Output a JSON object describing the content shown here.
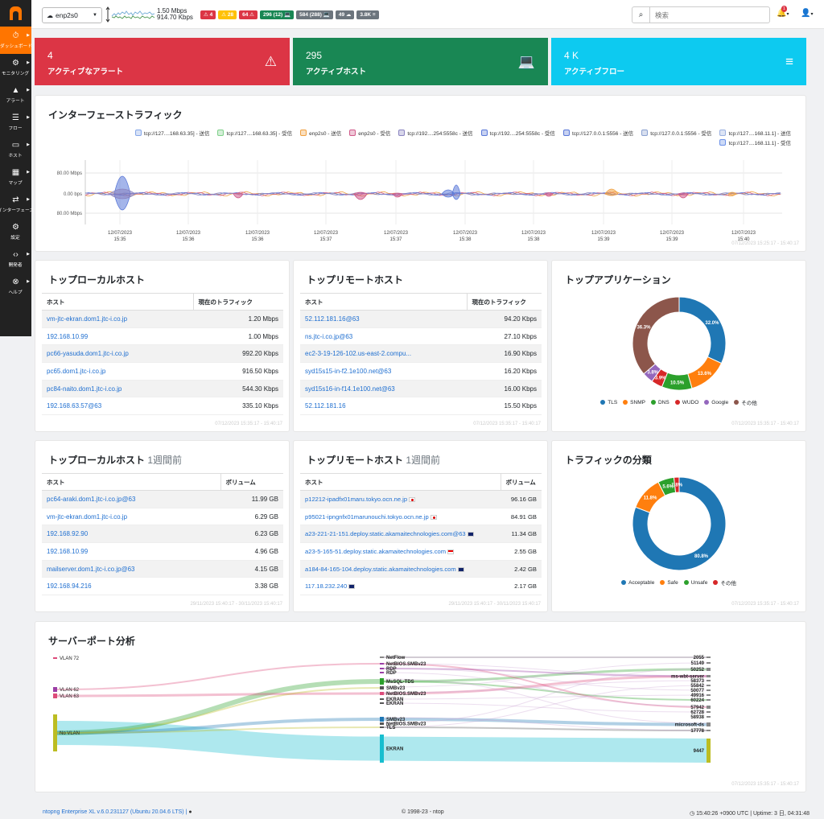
{
  "sidebar": {
    "items": [
      {
        "label": "ダッシュボード",
        "icon": "dashboard-icon"
      },
      {
        "label": "モニタリング",
        "icon": "monitoring-icon"
      },
      {
        "label": "アラート",
        "icon": "alert-icon"
      },
      {
        "label": "フロー",
        "icon": "flows-icon"
      },
      {
        "label": "ホスト",
        "icon": "hosts-icon"
      },
      {
        "label": "マップ",
        "icon": "map-icon"
      },
      {
        "label": "インターフェース",
        "icon": "interface-icon"
      },
      {
        "label": "設定",
        "icon": "settings-icon"
      },
      {
        "label": "開発者",
        "icon": "developer-icon"
      },
      {
        "label": "ヘルプ",
        "icon": "help-icon"
      }
    ]
  },
  "topbar": {
    "interface": "enp2s0",
    "rate_up": "1.50 Mbps",
    "rate_down": "914.70 Kbps",
    "badges": [
      {
        "text": "⚠ 4",
        "color": "#dc3545"
      },
      {
        "text": "⚠ 28",
        "color": "#ffc107"
      },
      {
        "text": "64 ⚠",
        "color": "#dc3545"
      },
      {
        "text": "296 (12) 💻",
        "color": "#198754"
      },
      {
        "text": "584 (288) 💻",
        "color": "#6c757d"
      },
      {
        "text": "49 ☁",
        "color": "#6c757d"
      },
      {
        "text": "3.8K ≡",
        "color": "#6c757d"
      }
    ],
    "search_placeholder": "検索",
    "notification_count": "1"
  },
  "tiles": [
    {
      "value": "4",
      "label": "アクティブなアラート",
      "color": "#dc3545"
    },
    {
      "value": "295",
      "label": "アクティブホスト",
      "color": "#198754"
    },
    {
      "value": "4 K",
      "label": "アクティブフロー",
      "color": "#0dcaf0"
    }
  ],
  "traffic": {
    "title": "インターフェーストラフィック",
    "legend": [
      {
        "name": "tcp://127....168.63.35] - 送信",
        "color": "#86a7e8"
      },
      {
        "name": "tcp://127....168.63.35] - 受信",
        "color": "#7fd08a"
      },
      {
        "name": "enp2s0 - 送信",
        "color": "#f0a040"
      },
      {
        "name": "enp2s0 - 受信",
        "color": "#d05a8a"
      },
      {
        "name": "tcp://192....254:5558c - 送信",
        "color": "#8a84c0"
      },
      {
        "name": "tcp://192....254:5558c - 受信",
        "color": "#5a78d8"
      },
      {
        "name": "tcp://127.0.0.1:5556 - 送信",
        "color": "#5a78d8"
      },
      {
        "name": "tcp://127.0.0.1:5556 - 受信",
        "color": "#8aa0d0"
      },
      {
        "name": "tcp://127....168.11.1] - 送信",
        "color": "#9ab0e0"
      },
      {
        "name": "tcp://127....168.11.1] - 受信",
        "color": "#6a90e8"
      }
    ],
    "y_ticks": [
      "80.00 Mbps",
      "0.00 bps",
      "80.00 Mbps"
    ],
    "x_ticks": [
      {
        "date": "12/07/2023",
        "time": "15:35"
      },
      {
        "date": "12/07/2023",
        "time": "15:36"
      },
      {
        "date": "12/07/2023",
        "time": "15:36"
      },
      {
        "date": "12/07/2023",
        "time": "15:37"
      },
      {
        "date": "12/07/2023",
        "time": "15:37"
      },
      {
        "date": "12/07/2023",
        "time": "15:38"
      },
      {
        "date": "12/07/2023",
        "time": "15:38"
      },
      {
        "date": "12/07/2023",
        "time": "15:39"
      },
      {
        "date": "12/07/2023",
        "time": "15:39"
      },
      {
        "date": "12/07/2023",
        "time": "15:40"
      }
    ],
    "stamp": "07/12/2023 15:25:17 - 15:40:17"
  },
  "local_hosts": {
    "title": "トップローカルホスト",
    "headers": [
      "ホスト",
      "現在のトラフィック"
    ],
    "rows": [
      [
        "vm-jtc-ekran.dom1.jtc-i.co.jp",
        "1.20 Mbps"
      ],
      [
        "192.168.10.99",
        "1.00 Mbps"
      ],
      [
        "pc66-yasuda.dom1.jtc-i.co.jp",
        "992.20 Kbps"
      ],
      [
        "pc65.dom1.jtc-i.co.jp",
        "916.50 Kbps"
      ],
      [
        "pc84-naito.dom1.jtc-i.co.jp",
        "544.30 Kbps"
      ],
      [
        "192.168.63.57@63",
        "335.10 Kbps"
      ]
    ],
    "stamp": "07/12/2023 15:35:17 - 15:40:17"
  },
  "remote_hosts": {
    "title": "トップリモートホスト",
    "headers": [
      "ホスト",
      "現在のトラフィック"
    ],
    "rows": [
      [
        "52.112.181.16@63",
        "94.20 Kbps"
      ],
      [
        "ns.jtc-i.co.jp@63",
        "27.10 Kbps"
      ],
      [
        "ec2-3-19-126-102.us-east-2.compu...",
        "16.90 Kbps"
      ],
      [
        "syd15s15-in-f2.1e100.net@63",
        "16.20 Kbps"
      ],
      [
        "syd15s16-in-f14.1e100.net@63",
        "16.00 Kbps"
      ],
      [
        "52.112.181.16",
        "15.50 Kbps"
      ]
    ],
    "stamp": "07/12/2023 15:35:17 - 15:40:17"
  },
  "top_apps": {
    "title": "トップアプリケーション",
    "stamp": "07/12/2023 15:35:17 - 15:40:17"
  },
  "local_week": {
    "title": "トップローカルホスト",
    "sub": "1週間前",
    "headers": [
      "ホスト",
      "ボリューム"
    ],
    "rows": [
      [
        "pc64-araki.dom1.jtc-i.co.jp@63",
        "11.99 GB"
      ],
      [
        "vm-jtc-ekran.dom1.jtc-i.co.jp",
        "6.29 GB"
      ],
      [
        "192.168.92.90",
        "6.23 GB"
      ],
      [
        "192.168.10.99",
        "4.96 GB"
      ],
      [
        "mailserver.dom1.jtc-i.co.jp@63",
        "4.15 GB"
      ],
      [
        "192.168.94.216",
        "3.38 GB"
      ]
    ],
    "stamp": "29/11/2023 15:40:17 - 30/11/2023 15:40:17"
  },
  "remote_week": {
    "title": "トップリモートホスト",
    "sub": "1週間前",
    "headers": [
      "ホスト",
      "ボリューム"
    ],
    "rows": [
      {
        "host": "p12212-ipadfx01maru.tokyo.ocn.ne.jp",
        "flag": "jp",
        "value": "96.16 GB"
      },
      {
        "host": "p95021-ipngnfx01marunouchi.tokyo.ocn.ne.jp",
        "flag": "jp",
        "value": "84.91 GB"
      },
      {
        "host": "a23-221-21-151.deploy.static.akamaitechnologies.com@63",
        "flag": "au",
        "value": "11.34 GB"
      },
      {
        "host": "a23-5-165-51.deploy.static.akamaitechnologies.com",
        "flag": "sg",
        "value": "2.55 GB"
      },
      {
        "host": "a184-84-165-104.deploy.static.akamaitechnologies.com",
        "flag": "au",
        "value": "2.42 GB"
      },
      {
        "host": "117.18.232.240",
        "flag": "au",
        "value": "2.17 GB"
      }
    ],
    "stamp": "29/11/2023 15:40:17 - 30/11/2023 15:40:17"
  },
  "traffic_class": {
    "title": "トラフィックの分類",
    "stamp": "07/12/2023 15:35:17 - 15:40:17"
  },
  "server_ports": {
    "title": "サーバーポート分析",
    "left": [
      "VLAN 72",
      "VLAN 62",
      "VLAN 63",
      "No VLAN"
    ],
    "middle": [
      "NetFlow",
      "NetBIOS.SMBv23",
      "RDP",
      "RDP",
      "MsSQL-TDS",
      "SMBv23",
      "NetBIOS.SMBv23",
      "EKRAN",
      "EKRAN",
      "SMBv23",
      "NetBIOS.SMBv23",
      "TLS",
      "EKRAN"
    ],
    "right": [
      "2055",
      "51149",
      "50252",
      "ms-wbt-server",
      "58373",
      "55842",
      "50077",
      "49916",
      "60224",
      "57942",
      "62728",
      "58938",
      "microsoft-ds",
      "17778",
      "9447"
    ],
    "stamp": "07/12/2023 15:35:17 - 15:40:17"
  },
  "chart_data": [
    {
      "type": "pie",
      "title": "トップアプリケーション",
      "categories": [
        "TLS",
        "SNMP",
        "DNS",
        "WUDO",
        "Google",
        "その他"
      ],
      "values": [
        32.0,
        13.6,
        10.5,
        3.9,
        3.8,
        36.3
      ],
      "colors": [
        "#1f77b4",
        "#ff7f0e",
        "#2ca02c",
        "#d62728",
        "#9467bd",
        "#8c564b"
      ]
    },
    {
      "type": "pie",
      "title": "トラフィックの分類",
      "categories": [
        "Acceptable",
        "Safe",
        "Unsafe",
        "その他"
      ],
      "values": [
        80.8,
        11.8,
        5.6,
        1.8
      ],
      "colors": [
        "#1f77b4",
        "#ff7f0e",
        "#2ca02c",
        "#d62728"
      ]
    }
  ],
  "footer": {
    "version": "ntopng Enterprise XL v.6.0.231127 (Ubuntu 20.04.6 LTS) |",
    "copyright": "© 1998-23 - ntop",
    "uptime": "15:40:26 +0900 UTC | Uptime: 3 日, 04:31:48"
  }
}
